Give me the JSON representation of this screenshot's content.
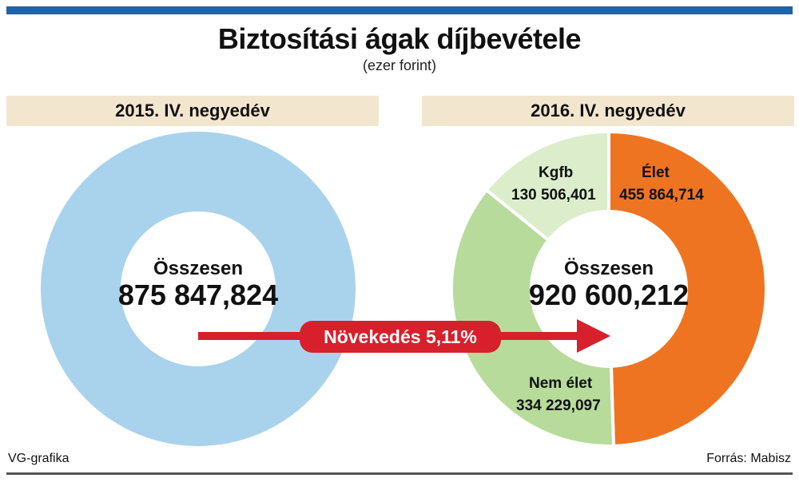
{
  "title": "Biztosítási ágak díjbevétele",
  "subtitle": "(ezer forint)",
  "source_left": "VG-grafika",
  "source_right": "Forrás: Mabisz",
  "growth_label": "Növekedés 5,11%",
  "colors": {
    "total_2015": "#a9d3ec",
    "elet": "#ef7422",
    "nem_elet": "#b6db9a",
    "kgfb": "#dcedcc",
    "arrow": "#d7202c",
    "header_bg": "#f3e6cf",
    "top_bar": "#1f63a8"
  },
  "chart_data": [
    {
      "type": "pie",
      "title": "2015. IV. negyedév",
      "center_label": "Összesen",
      "total_label": "875 847,824",
      "slices": [
        {
          "label": "",
          "value": 875847.824
        }
      ]
    },
    {
      "type": "pie",
      "title": "2016. IV. negyedév",
      "center_label": "Összesen",
      "total_label": "920 600,212",
      "slices": [
        {
          "label": "Élet",
          "value_label": "455 864,714",
          "value": 455864.714
        },
        {
          "label": "Nem élet",
          "value_label": "334 229,097",
          "value": 334229.097
        },
        {
          "label": "Kgfb",
          "value_label": "130 506,401",
          "value": 130506.401
        }
      ]
    }
  ]
}
